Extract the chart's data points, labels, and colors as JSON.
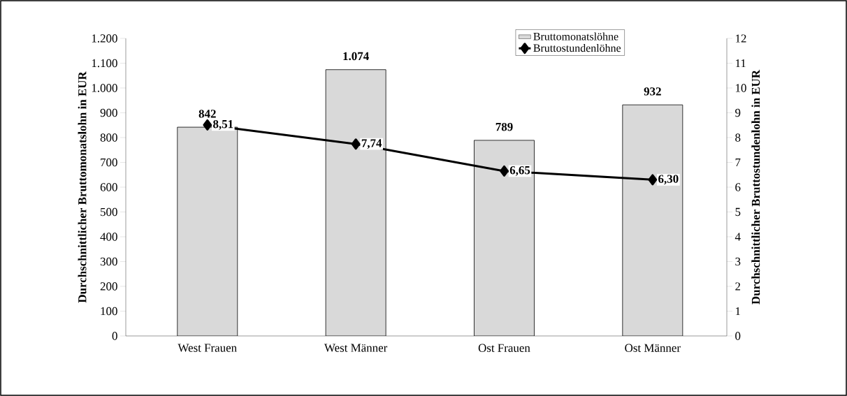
{
  "chart_data": {
    "type": "bar",
    "categories": [
      "West Frauen",
      "West Männer",
      "Ost Frauen",
      "Ost Männer"
    ],
    "ylabel": "Durchschnittlicher Bruttomonatslohn in EUR",
    "y2label": "Durchschnittlicher Bruttostundenlohn in EUR",
    "series": [
      {
        "name": "Bruttomonatslöhne",
        "color": "#d9d9d9",
        "values": [
          842,
          1074,
          789,
          932
        ],
        "value_labels": [
          "842",
          "1.074",
          "789",
          "932"
        ]
      },
      {
        "name": "Bruttostundenlöhne",
        "type": "line",
        "axis": "y2",
        "color": "#000000",
        "values": [
          8.51,
          7.74,
          6.65,
          6.3
        ],
        "value_labels": [
          "8,51",
          "7,74",
          "6,65",
          "6,30"
        ]
      }
    ],
    "ylim": [
      0,
      1200
    ],
    "yticks": [
      0,
      100,
      200,
      300,
      400,
      500,
      600,
      700,
      800,
      900,
      {
        "value": 1000,
        "label": "1.000"
      },
      {
        "value": 1100,
        "label": "1.100"
      },
      {
        "value": 1200,
        "label": "1.200"
      }
    ],
    "y2lim": [
      0,
      12
    ],
    "y2ticks": [
      0,
      1,
      2,
      3,
      4,
      5,
      6,
      7,
      8,
      9,
      10,
      11,
      12
    ],
    "marker": "diamond",
    "grid": false,
    "legend": "top right"
  }
}
